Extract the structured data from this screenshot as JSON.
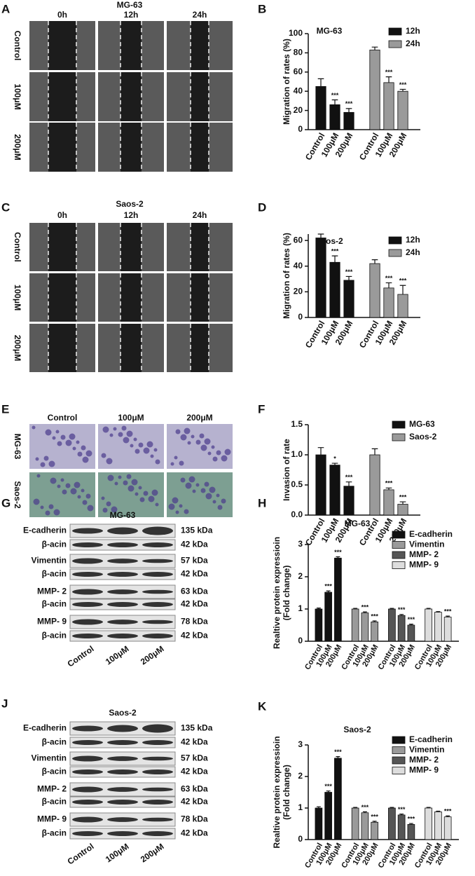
{
  "image_panels": [
    {
      "panel": "A",
      "title": "MG-63",
      "columns": [
        "0h",
        "12h",
        "24h"
      ],
      "rows": [
        "Control",
        "100μM",
        "200μM"
      ]
    },
    {
      "panel": "C",
      "title": "Saos-2",
      "columns": [
        "0h",
        "12h",
        "24h"
      ],
      "rows": [
        "Control",
        "100μM",
        "200μM"
      ]
    },
    {
      "panel": "E",
      "columns": [
        "Control",
        "100μM",
        "200μM"
      ],
      "rows": [
        "MG-63",
        "Saos-2"
      ]
    }
  ],
  "blots": [
    {
      "panel": "G",
      "title": "MG-63",
      "lanes": [
        "Control",
        "100μM",
        "200μM"
      ],
      "rows": [
        {
          "protein": "E-cadherin",
          "size": "135 kDa"
        },
        {
          "protein": "β-acin",
          "size": "42 kDa"
        },
        {
          "protein": "Vimentin",
          "size": "57 kDa"
        },
        {
          "protein": "β-acin",
          "size": "42 kDa"
        },
        {
          "protein": "MMP- 2",
          "size": "63 kDa"
        },
        {
          "protein": "β-acin",
          "size": "42 kDa"
        },
        {
          "protein": "MMP- 9",
          "size": "78 kDa"
        },
        {
          "protein": "β-acin",
          "size": "42 kDa"
        }
      ]
    },
    {
      "panel": "J",
      "title": "Saos-2",
      "lanes": [
        "Control",
        "100μM",
        "200μM"
      ],
      "rows": [
        {
          "protein": "E-cadherin",
          "size": "135 kDa"
        },
        {
          "protein": "β-acin",
          "size": "42 kDa"
        },
        {
          "protein": "Vimentin",
          "size": "57 kDa"
        },
        {
          "protein": "β-acin",
          "size": "42 kDa"
        },
        {
          "protein": "MMP- 2",
          "size": "63 kDa"
        },
        {
          "protein": "β-acin",
          "size": "42 kDa"
        },
        {
          "protein": "MMP- 9",
          "size": "78 kDa"
        },
        {
          "protein": "β-acin",
          "size": "42 kDa"
        }
      ]
    }
  ],
  "chart_data": [
    {
      "type": "bar",
      "panel": "B",
      "title": "MG-63",
      "ylabel": [
        "Migration of rates (%)"
      ],
      "categories": [
        "Control",
        "100μM",
        "200μM"
      ],
      "ylim": [
        0,
        100
      ],
      "yticks": [
        0,
        20,
        40,
        60,
        80,
        100
      ],
      "series": [
        {
          "name": "12h",
          "color": "#111111",
          "values": [
            45,
            26,
            18
          ],
          "errors": [
            8,
            5,
            4
          ],
          "significance": [
            null,
            "***",
            "***"
          ]
        },
        {
          "name": "24h",
          "color": "#9a9a9a",
          "values": [
            83,
            49,
            40
          ],
          "errors": [
            3,
            6,
            2
          ],
          "significance": [
            null,
            "***",
            "***"
          ]
        }
      ]
    },
    {
      "type": "bar",
      "panel": "D",
      "title": "Saos-2",
      "ylabel": [
        "Migration of rates (%)"
      ],
      "categories": [
        "Control",
        "100μM",
        "200μM"
      ],
      "ylim": [
        0,
        65
      ],
      "yticks": [
        0,
        20,
        40,
        60
      ],
      "series": [
        {
          "name": "12h",
          "color": "#111111",
          "values": [
            62,
            43,
            29
          ],
          "errors": [
            3,
            5,
            3
          ],
          "significance": [
            null,
            "***",
            "***"
          ]
        },
        {
          "name": "24h",
          "color": "#9a9a9a",
          "values": [
            42,
            23,
            18
          ],
          "errors": [
            3,
            4,
            7
          ],
          "significance": [
            null,
            "***",
            "***"
          ]
        }
      ]
    },
    {
      "type": "bar",
      "panel": "F",
      "ylabel": [
        "Invasion of rate"
      ],
      "categories": [
        "Control",
        "100μM",
        "200μM"
      ],
      "ylim": [
        0,
        1.5
      ],
      "yticks": [
        {
          "value": 0,
          "label": "0.0"
        },
        0.5,
        {
          "value": 1,
          "label": "1.0"
        },
        1.5
      ],
      "series": [
        {
          "name": "MG-63",
          "color": "#111111",
          "values": [
            1.0,
            0.83,
            0.48
          ],
          "errors": [
            0.12,
            0.03,
            0.07
          ],
          "significance": [
            null,
            "*",
            "***"
          ]
        },
        {
          "name": "Saos-2",
          "color": "#9a9a9a",
          "values": [
            1.0,
            0.42,
            0.18
          ],
          "errors": [
            0.1,
            0.03,
            0.04
          ],
          "significance": [
            null,
            "***",
            "***"
          ]
        }
      ]
    },
    {
      "type": "bar",
      "panel": "H",
      "title": "MG-63",
      "ylabel": [
        "Realtive protein expressioin",
        "(Fold change)"
      ],
      "categories": [
        "Control",
        "100μM",
        "200μM"
      ],
      "ylim": [
        0,
        3
      ],
      "yticks": [
        0,
        1,
        2,
        3
      ],
      "series": [
        {
          "name": "E-cadherin",
          "color": "#111111",
          "values": [
            1.0,
            1.52,
            2.58
          ],
          "errors": [
            0.03,
            0.04,
            0.04
          ],
          "significance": [
            null,
            "***",
            "***"
          ]
        },
        {
          "name": "Vimentin",
          "color": "#9a9a9a",
          "values": [
            1.0,
            0.88,
            0.6
          ],
          "errors": [
            0.02,
            0.03,
            0.03
          ],
          "significance": [
            null,
            "***",
            "***"
          ]
        },
        {
          "name": "MMP- 2",
          "color": "#555555",
          "values": [
            1.0,
            0.8,
            0.5
          ],
          "errors": [
            0.02,
            0.03,
            0.03
          ],
          "significance": [
            null,
            "***",
            "***"
          ]
        },
        {
          "name": "MMP- 9",
          "color": "#dddddd",
          "values": [
            1.0,
            0.9,
            0.75
          ],
          "errors": [
            0.02,
            0.02,
            0.03
          ],
          "significance": [
            null,
            null,
            "***"
          ]
        }
      ]
    },
    {
      "type": "bar",
      "panel": "K",
      "title": "Saos-2",
      "ylabel": [
        "Realtive protein expressioin",
        "(Fold change)"
      ],
      "categories": [
        "Control",
        "100μM",
        "200μM"
      ],
      "ylim": [
        0,
        3
      ],
      "yticks": [
        0,
        1,
        2,
        3
      ],
      "series": [
        {
          "name": "E-cadherin",
          "color": "#111111",
          "values": [
            1.0,
            1.5,
            2.58
          ],
          "errors": [
            0.04,
            0.04,
            0.05
          ],
          "significance": [
            null,
            "***",
            "***"
          ]
        },
        {
          "name": "Vimentin",
          "color": "#9a9a9a",
          "values": [
            1.0,
            0.85,
            0.55
          ],
          "errors": [
            0.02,
            0.03,
            0.03
          ],
          "significance": [
            null,
            "***",
            "***"
          ]
        },
        {
          "name": "MMP- 2",
          "color": "#555555",
          "values": [
            1.0,
            0.78,
            0.48
          ],
          "errors": [
            0.02,
            0.03,
            0.03
          ],
          "significance": [
            null,
            "***",
            "***"
          ]
        },
        {
          "name": "MMP- 9",
          "color": "#dddddd",
          "values": [
            1.0,
            0.88,
            0.72
          ],
          "errors": [
            0.02,
            0.02,
            0.03
          ],
          "significance": [
            null,
            null,
            "***"
          ]
        }
      ]
    }
  ]
}
